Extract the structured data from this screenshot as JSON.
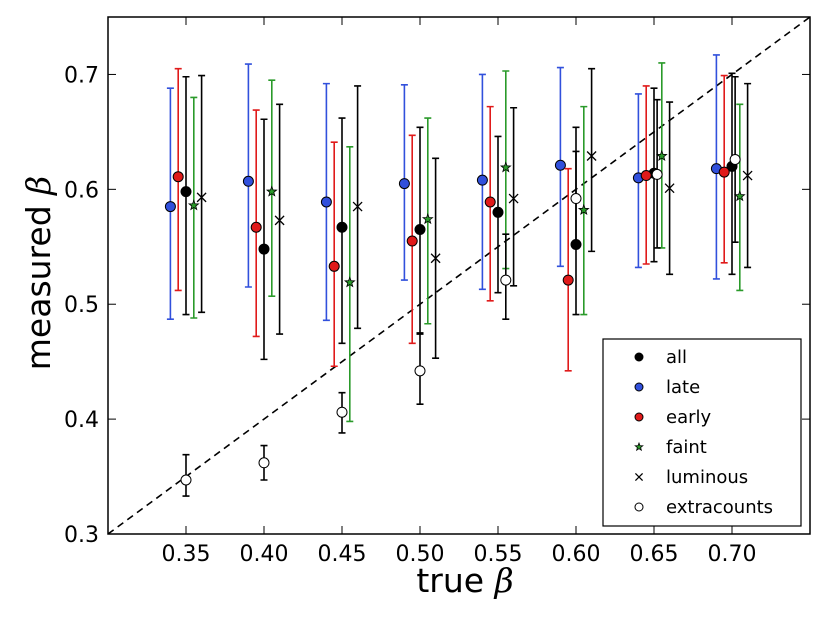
{
  "chart_data": {
    "type": "scatter",
    "xlabel_text": "true",
    "ylabel_text": "measured",
    "symbol": "β",
    "xlim": [
      0.3,
      0.75
    ],
    "ylim": [
      0.3,
      0.75
    ],
    "xticks": [
      "0.35",
      "0.40",
      "0.45",
      "0.50",
      "0.55",
      "0.60",
      "0.65",
      "0.70"
    ],
    "yticks": [
      "0.3",
      "0.4",
      "0.5",
      "0.6",
      "0.7"
    ],
    "reference_line": "y = x (dashed)",
    "legend_position": "bottom-right",
    "series": [
      {
        "name": "all",
        "marker": "circle-filled",
        "color": "#000000",
        "points": [
          {
            "x": 0.35,
            "y": 0.598,
            "lo": 0.491,
            "hi": 0.698
          },
          {
            "x": 0.4,
            "y": 0.548,
            "lo": 0.452,
            "hi": 0.661
          },
          {
            "x": 0.45,
            "y": 0.567,
            "lo": 0.466,
            "hi": 0.662
          },
          {
            "x": 0.5,
            "y": 0.565,
            "lo": 0.475,
            "hi": 0.654
          },
          {
            "x": 0.55,
            "y": 0.58,
            "lo": 0.51,
            "hi": 0.646
          },
          {
            "x": 0.6,
            "y": 0.552,
            "lo": 0.491,
            "hi": 0.654
          },
          {
            "x": 0.65,
            "y": 0.614,
            "lo": 0.537,
            "hi": 0.688
          },
          {
            "x": 0.7,
            "y": 0.62,
            "lo": 0.526,
            "hi": 0.701
          }
        ]
      },
      {
        "name": "late",
        "marker": "circle-filled",
        "color": "#3150dc",
        "points": [
          {
            "x": 0.34,
            "y": 0.585,
            "lo": 0.487,
            "hi": 0.688
          },
          {
            "x": 0.39,
            "y": 0.607,
            "lo": 0.515,
            "hi": 0.709
          },
          {
            "x": 0.44,
            "y": 0.589,
            "lo": 0.486,
            "hi": 0.692
          },
          {
            "x": 0.49,
            "y": 0.605,
            "lo": 0.521,
            "hi": 0.691
          },
          {
            "x": 0.54,
            "y": 0.608,
            "lo": 0.513,
            "hi": 0.7
          },
          {
            "x": 0.59,
            "y": 0.621,
            "lo": 0.533,
            "hi": 0.706
          },
          {
            "x": 0.64,
            "y": 0.61,
            "lo": 0.532,
            "hi": 0.683
          },
          {
            "x": 0.69,
            "y": 0.618,
            "lo": 0.522,
            "hi": 0.717
          }
        ]
      },
      {
        "name": "early",
        "marker": "circle-filled",
        "color": "#e01a1a",
        "points": [
          {
            "x": 0.345,
            "y": 0.611,
            "lo": 0.512,
            "hi": 0.705
          },
          {
            "x": 0.395,
            "y": 0.567,
            "lo": 0.472,
            "hi": 0.669
          },
          {
            "x": 0.445,
            "y": 0.533,
            "lo": 0.446,
            "hi": 0.641
          },
          {
            "x": 0.495,
            "y": 0.555,
            "lo": 0.466,
            "hi": 0.647
          },
          {
            "x": 0.545,
            "y": 0.589,
            "lo": 0.503,
            "hi": 0.672
          },
          {
            "x": 0.595,
            "y": 0.521,
            "lo": 0.442,
            "hi": 0.618
          },
          {
            "x": 0.645,
            "y": 0.612,
            "lo": 0.535,
            "hi": 0.69
          },
          {
            "x": 0.695,
            "y": 0.615,
            "lo": 0.536,
            "hi": 0.699
          }
        ]
      },
      {
        "name": "faint",
        "marker": "star",
        "color": "#2a9a2a",
        "points": [
          {
            "x": 0.355,
            "y": 0.586,
            "lo": 0.488,
            "hi": 0.68
          },
          {
            "x": 0.405,
            "y": 0.598,
            "lo": 0.507,
            "hi": 0.695
          },
          {
            "x": 0.455,
            "y": 0.519,
            "lo": 0.398,
            "hi": 0.637
          },
          {
            "x": 0.505,
            "y": 0.574,
            "lo": 0.483,
            "hi": 0.662
          },
          {
            "x": 0.555,
            "y": 0.619,
            "lo": 0.531,
            "hi": 0.703
          },
          {
            "x": 0.605,
            "y": 0.582,
            "lo": 0.491,
            "hi": 0.672
          },
          {
            "x": 0.655,
            "y": 0.629,
            "lo": 0.549,
            "hi": 0.71
          },
          {
            "x": 0.705,
            "y": 0.594,
            "lo": 0.512,
            "hi": 0.674
          }
        ]
      },
      {
        "name": "luminous",
        "marker": "x",
        "color": "#000000",
        "points": [
          {
            "x": 0.36,
            "y": 0.593,
            "lo": 0.493,
            "hi": 0.699
          },
          {
            "x": 0.41,
            "y": 0.573,
            "lo": 0.474,
            "hi": 0.674
          },
          {
            "x": 0.46,
            "y": 0.585,
            "lo": 0.479,
            "hi": 0.69
          },
          {
            "x": 0.51,
            "y": 0.54,
            "lo": 0.453,
            "hi": 0.627
          },
          {
            "x": 0.56,
            "y": 0.592,
            "lo": 0.516,
            "hi": 0.671
          },
          {
            "x": 0.61,
            "y": 0.629,
            "lo": 0.546,
            "hi": 0.705
          },
          {
            "x": 0.66,
            "y": 0.601,
            "lo": 0.526,
            "hi": 0.676
          },
          {
            "x": 0.71,
            "y": 0.612,
            "lo": 0.532,
            "hi": 0.692
          }
        ]
      },
      {
        "name": "extracounts",
        "marker": "circle-open",
        "color": "#000000",
        "points": [
          {
            "x": 0.35,
            "y": 0.347,
            "lo": 0.333,
            "hi": 0.369
          },
          {
            "x": 0.4,
            "y": 0.362,
            "lo": 0.347,
            "hi": 0.377
          },
          {
            "x": 0.45,
            "y": 0.406,
            "lo": 0.388,
            "hi": 0.423
          },
          {
            "x": 0.5,
            "y": 0.442,
            "lo": 0.413,
            "hi": 0.474
          },
          {
            "x": 0.555,
            "y": 0.521,
            "lo": 0.487,
            "hi": 0.561
          },
          {
            "x": 0.6,
            "y": 0.592,
            "lo": 0.551,
            "hi": 0.633
          },
          {
            "x": 0.652,
            "y": 0.613,
            "lo": 0.549,
            "hi": 0.678
          },
          {
            "x": 0.702,
            "y": 0.626,
            "lo": 0.554,
            "hi": 0.698
          }
        ]
      }
    ]
  }
}
